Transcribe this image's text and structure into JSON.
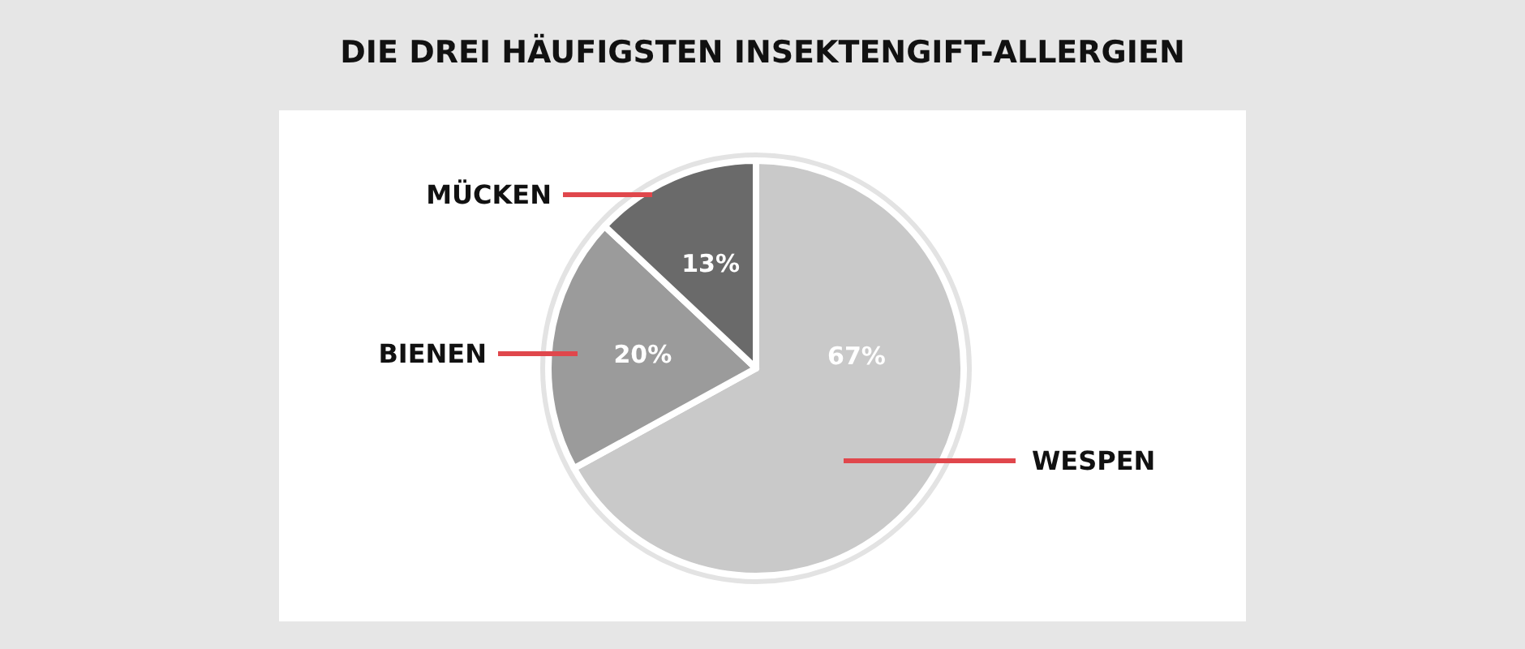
{
  "chart_data": {
    "type": "pie",
    "title": "DIE DREI HÄUFIGSTEN INSEKTENGIFT-ALLERGIEN",
    "categories": [
      "WESPEN",
      "BIENEN",
      "MÜCKEN"
    ],
    "values": [
      67,
      20,
      13
    ],
    "colors": [
      "#c9c9c9",
      "#9b9b9b",
      "#6a6a6a"
    ],
    "value_labels": [
      "67%",
      "20%",
      "13%"
    ]
  }
}
